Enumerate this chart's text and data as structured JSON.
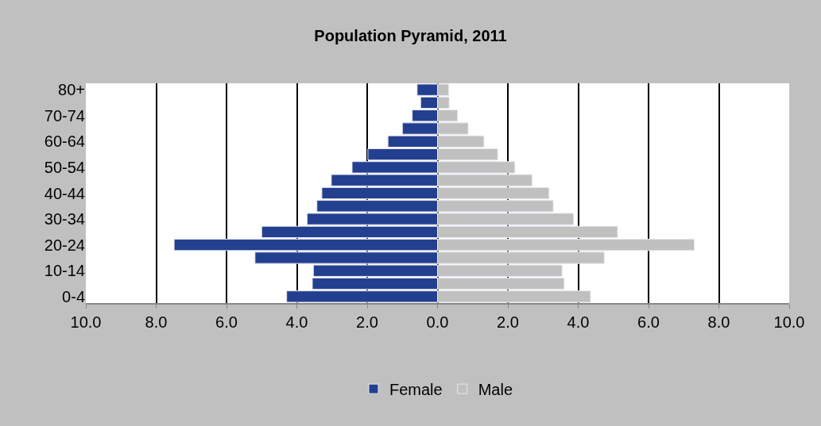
{
  "chart_data": {
    "type": "bar",
    "orientation": "horizontal",
    "stacked": true,
    "title": "Population Pyramid, 2011",
    "categories": [
      "80+",
      null,
      "70-74",
      null,
      "60-64",
      null,
      "50-54",
      null,
      "40-44",
      null,
      "30-34",
      null,
      "20-24",
      null,
      "10-14",
      null,
      "0-4"
    ],
    "series": [
      {
        "name": "Female",
        "color": "#233f8f",
        "values": [
          -0.58,
          -0.48,
          -0.72,
          -1.0,
          -1.41,
          -1.98,
          -2.43,
          -3.02,
          -3.29,
          -3.43,
          -3.71,
          -5.0,
          -7.49,
          -5.19,
          -3.53,
          -3.56,
          -4.29
        ]
      },
      {
        "name": "Male",
        "color": "#c0c0c0",
        "values": [
          0.32,
          0.33,
          0.57,
          0.87,
          1.32,
          1.71,
          2.2,
          2.69,
          3.17,
          3.29,
          3.87,
          5.12,
          7.3,
          4.74,
          3.54,
          3.6,
          4.35
        ]
      }
    ],
    "xlim": [
      -10,
      10
    ],
    "xticks": [
      {
        "value": -10,
        "label": "10.0"
      },
      {
        "value": -8,
        "label": "8.0"
      },
      {
        "value": -6,
        "label": "6.0"
      },
      {
        "value": -4,
        "label": "4.0"
      },
      {
        "value": -2,
        "label": "2.0"
      },
      {
        "value": 0,
        "label": "0.0"
      },
      {
        "value": 2,
        "label": "2.0"
      },
      {
        "value": 4,
        "label": "4.0"
      },
      {
        "value": 6,
        "label": "6.0"
      },
      {
        "value": 8,
        "label": "8.0"
      },
      {
        "value": 10,
        "label": "10.0"
      }
    ],
    "grid": "x",
    "legend": "bottom"
  }
}
